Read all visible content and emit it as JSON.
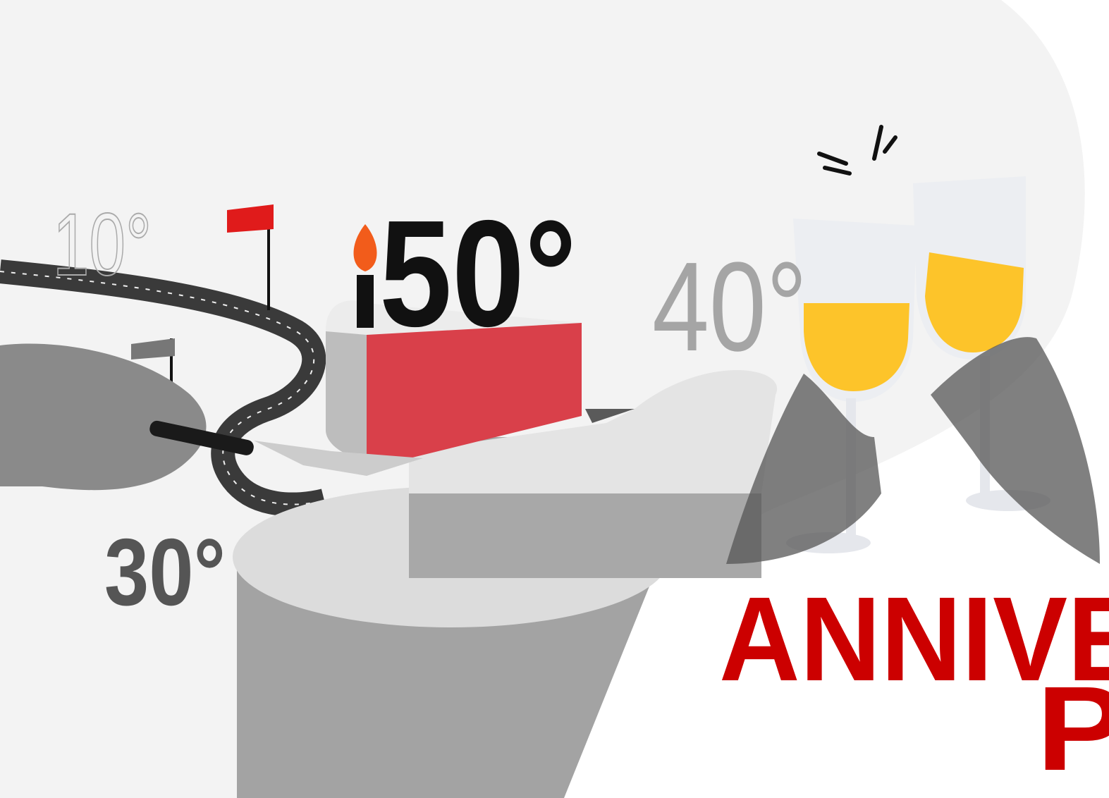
{
  "milestones": {
    "ten": "10°",
    "fifty": "50°",
    "forty": "40°",
    "thirty": "30°"
  },
  "headline": {
    "line1": "ANNIVE",
    "line2": "PI"
  }
}
